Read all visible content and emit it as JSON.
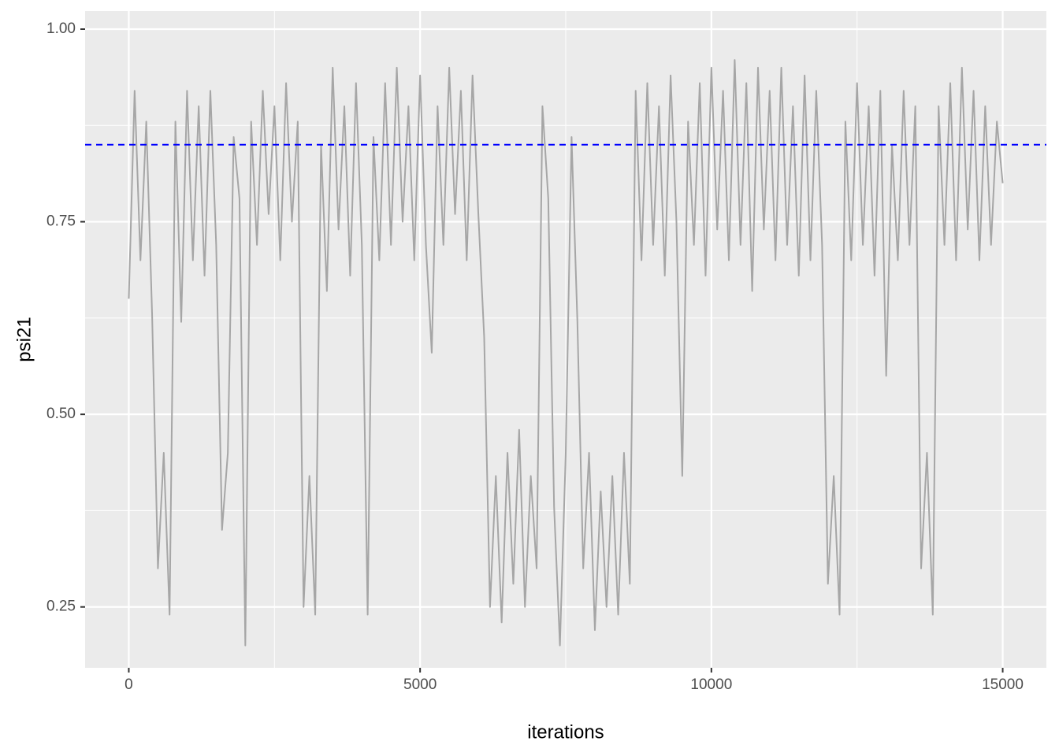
{
  "chart_data": {
    "type": "line",
    "x_label": "iterations",
    "y_label": "psi21",
    "x": [
      0,
      100,
      200,
      300,
      400,
      500,
      600,
      700,
      800,
      900,
      1000,
      1100,
      1200,
      1300,
      1400,
      1500,
      1600,
      1700,
      1800,
      1900,
      2000,
      2100,
      2200,
      2300,
      2400,
      2500,
      2600,
      2700,
      2800,
      2900,
      3000,
      3100,
      3200,
      3300,
      3400,
      3500,
      3600,
      3700,
      3800,
      3900,
      4000,
      4100,
      4200,
      4300,
      4400,
      4500,
      4600,
      4700,
      4800,
      4900,
      5000,
      5100,
      5200,
      5300,
      5400,
      5500,
      5600,
      5700,
      5800,
      5900,
      6000,
      6100,
      6200,
      6300,
      6400,
      6500,
      6600,
      6700,
      6800,
      6900,
      7000,
      7100,
      7200,
      7300,
      7400,
      7500,
      7600,
      7700,
      7800,
      7900,
      8000,
      8100,
      8200,
      8300,
      8400,
      8500,
      8600,
      8700,
      8800,
      8900,
      9000,
      9100,
      9200,
      9300,
      9400,
      9500,
      9600,
      9700,
      9800,
      9900,
      10000,
      10100,
      10200,
      10300,
      10400,
      10500,
      10600,
      10700,
      10800,
      10900,
      11000,
      11100,
      11200,
      11300,
      11400,
      11500,
      11600,
      11700,
      11800,
      11900,
      12000,
      12100,
      12200,
      12300,
      12400,
      12500,
      12600,
      12700,
      12800,
      12900,
      13000,
      13100,
      13200,
      13300,
      13400,
      13500,
      13600,
      13700,
      13800,
      13900,
      14000,
      14100,
      14200,
      14300,
      14400,
      14500,
      14600,
      14700,
      14800,
      14900,
      15000
    ],
    "values": [
      0.65,
      0.92,
      0.7,
      0.88,
      0.63,
      0.3,
      0.45,
      0.24,
      0.88,
      0.62,
      0.92,
      0.7,
      0.9,
      0.68,
      0.92,
      0.72,
      0.35,
      0.45,
      0.86,
      0.78,
      0.2,
      0.88,
      0.72,
      0.92,
      0.76,
      0.9,
      0.7,
      0.93,
      0.75,
      0.88,
      0.25,
      0.42,
      0.24,
      0.85,
      0.66,
      0.95,
      0.74,
      0.9,
      0.68,
      0.93,
      0.72,
      0.24,
      0.86,
      0.7,
      0.93,
      0.72,
      0.95,
      0.75,
      0.9,
      0.7,
      0.94,
      0.72,
      0.58,
      0.9,
      0.72,
      0.95,
      0.76,
      0.92,
      0.7,
      0.94,
      0.76,
      0.6,
      0.25,
      0.42,
      0.23,
      0.45,
      0.28,
      0.48,
      0.25,
      0.42,
      0.3,
      0.9,
      0.78,
      0.38,
      0.2,
      0.45,
      0.86,
      0.62,
      0.3,
      0.45,
      0.22,
      0.4,
      0.25,
      0.42,
      0.24,
      0.45,
      0.28,
      0.92,
      0.7,
      0.93,
      0.72,
      0.9,
      0.68,
      0.94,
      0.75,
      0.42,
      0.88,
      0.72,
      0.93,
      0.68,
      0.95,
      0.74,
      0.92,
      0.7,
      0.96,
      0.72,
      0.93,
      0.66,
      0.95,
      0.74,
      0.92,
      0.7,
      0.95,
      0.72,
      0.9,
      0.68,
      0.94,
      0.7,
      0.92,
      0.72,
      0.28,
      0.42,
      0.24,
      0.88,
      0.7,
      0.93,
      0.72,
      0.9,
      0.68,
      0.92,
      0.55,
      0.85,
      0.7,
      0.92,
      0.72,
      0.9,
      0.3,
      0.45,
      0.24,
      0.9,
      0.72,
      0.93,
      0.7,
      0.95,
      0.74,
      0.92,
      0.7,
      0.9,
      0.72,
      0.88,
      0.8
    ],
    "color": "#a6a6a6",
    "hline": {
      "value": 0.85,
      "color": "#0000ff"
    },
    "xlim": [
      -750,
      15750
    ],
    "ylim": [
      0.171,
      1.0235
    ],
    "xticks": [
      0,
      5000,
      10000,
      15000
    ],
    "yticks": [
      {
        "value": 0.25,
        "label": "0.25"
      },
      {
        "value": 0.5,
        "label": "0.50"
      },
      {
        "value": 0.75,
        "label": "0.75"
      },
      {
        "value": 1,
        "label": "1.00"
      }
    ],
    "x_minor_ticks": [
      2500,
      7500,
      12500
    ],
    "y_minor_ticks": [
      0.375,
      0.625,
      0.875
    ],
    "grid": true
  }
}
